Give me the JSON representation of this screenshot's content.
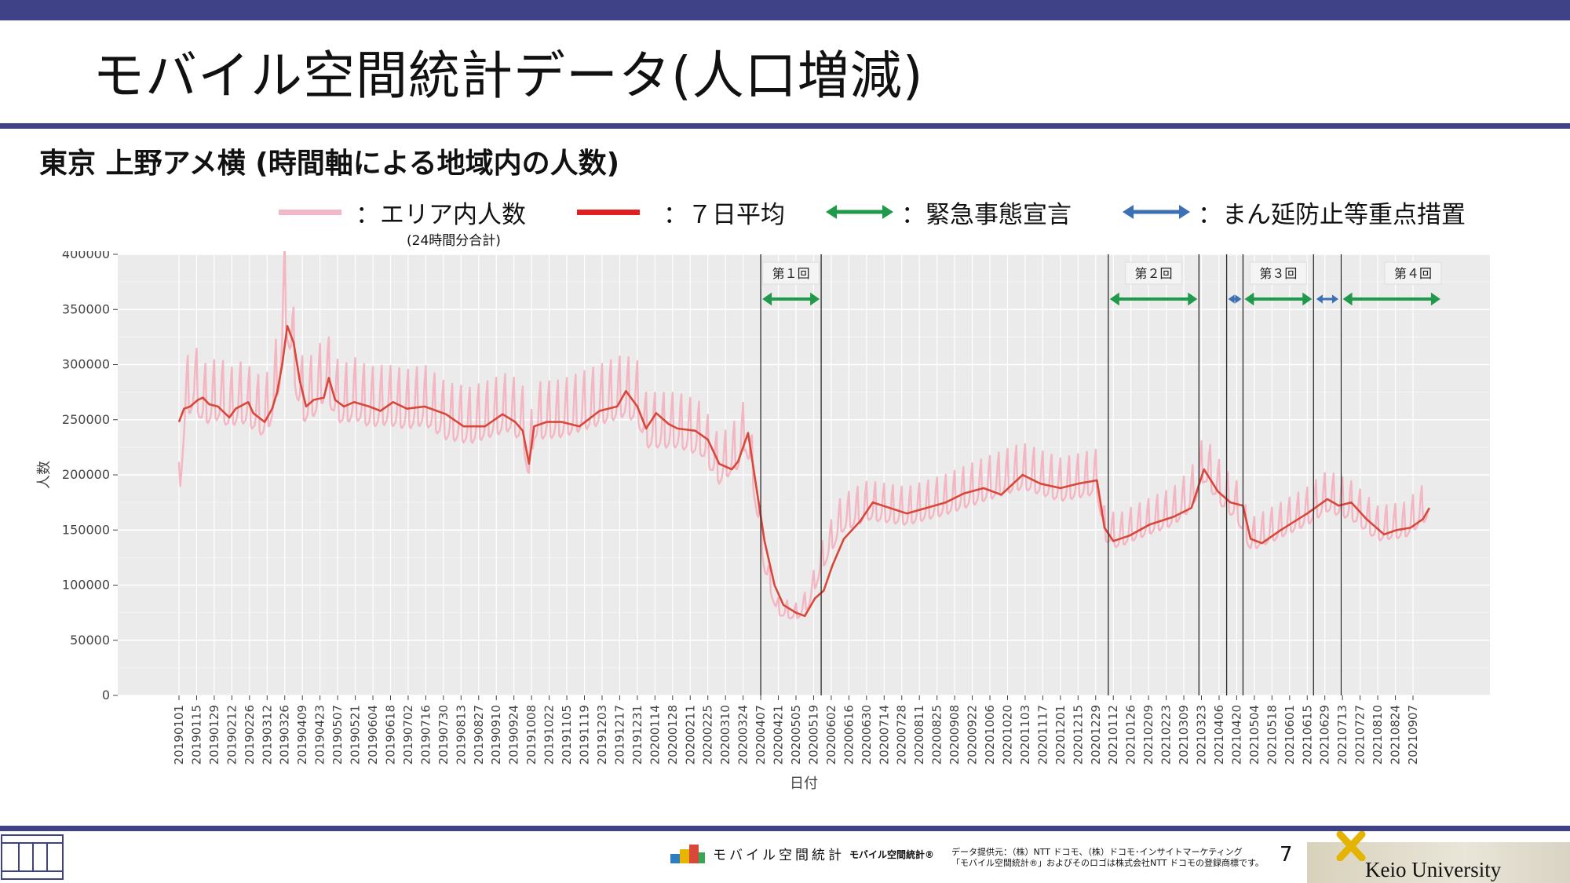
{
  "slide": {
    "title": "モバイル空間統計データ(人口増減)",
    "subtitle": "東京 上野アメ横 (時間軸による地域内の人数)",
    "page_number": "7"
  },
  "legend": {
    "area_label": "：エリア内人数",
    "area_note": "(24時間分合計)",
    "avg_label": "：７日平均",
    "emergency_label": "：緊急事態宣言",
    "priority_label": "：まん延防止等重点措置"
  },
  "footer": {
    "brand": "モバイル空間統計",
    "registered": "モバイル空間統計®",
    "credit_line1": "データ提供元：（株）NTT ドコモ、（株）ドコモ･インサイトマーケティング",
    "credit_line2": "「モバイル空間統計®」およびそのロゴは株式会社NTT ドコモの登録商標です。",
    "university": "Keio University"
  },
  "colors": {
    "daily": "#f4b6c2",
    "average": "#d9473b",
    "emergency": "#1f9a4a",
    "priority": "#3b6fb6",
    "band": "#3f4287",
    "panel": "#ebebeb"
  },
  "chart_data": {
    "type": "line",
    "xlabel": "日付",
    "ylabel": "人数",
    "ylim": [
      0,
      400000
    ],
    "yticks": [
      0,
      50000,
      100000,
      150000,
      200000,
      250000,
      300000,
      350000,
      400000
    ],
    "ytick_labels": [
      "0",
      "50000",
      "100000",
      "150000",
      "200000",
      "250000",
      "300000",
      "350000",
      "400000"
    ],
    "x_start": "2019-01-01",
    "x_end": "2021-09-20",
    "x_tick_labels": [
      "20190101",
      "20190115",
      "20190129",
      "20190212",
      "20190226",
      "20190312",
      "20190326",
      "20190409",
      "20190423",
      "20190507",
      "20190521",
      "20190604",
      "20190618",
      "20190702",
      "20190716",
      "20190730",
      "20190813",
      "20190827",
      "20190910",
      "20190924",
      "20191008",
      "20191022",
      "20191105",
      "20191119",
      "20191203",
      "20191217",
      "20191231",
      "20200114",
      "20200128",
      "20200211",
      "20200225",
      "20200310",
      "20200324",
      "20200407",
      "20200421",
      "20200505",
      "20200519",
      "20200602",
      "20200616",
      "20200630",
      "20200714",
      "20200728",
      "20200811",
      "20200825",
      "20200908",
      "20200922",
      "20201006",
      "20201020",
      "20201103",
      "20201117",
      "20201201",
      "20201215",
      "20201229",
      "20210112",
      "20210126",
      "20210209",
      "20210223",
      "20210309",
      "20210323",
      "20210406",
      "20210420",
      "20210504",
      "20210518",
      "20210601",
      "20210615",
      "20210629",
      "20210713",
      "20210727",
      "20210810",
      "20210824",
      "20210907"
    ],
    "grid": true,
    "series": [
      {
        "name": "エリア内人数",
        "style": "daily",
        "points": [
          [
            "20190101",
            185000
          ],
          [
            "20190106",
            265000
          ],
          [
            "20190113",
            280000
          ],
          [
            "20190120",
            262000
          ],
          [
            "20190127",
            265000
          ],
          [
            "20190203",
            268000
          ],
          [
            "20190210",
            258000
          ],
          [
            "20190217",
            265000
          ],
          [
            "20190224",
            262000
          ],
          [
            "20190303",
            256000
          ],
          [
            "20190310",
            250000
          ],
          [
            "20190317",
            270000
          ],
          [
            "20190322",
            300000
          ],
          [
            "20190326",
            360000
          ],
          [
            "20190330",
            330000
          ],
          [
            "20190405",
            285000
          ],
          [
            "20190410",
            265000
          ],
          [
            "20190420",
            272000
          ],
          [
            "20190428",
            290000
          ],
          [
            "20190505",
            268000
          ],
          [
            "20190512",
            262000
          ],
          [
            "20190520",
            268000
          ],
          [
            "20190601",
            260000
          ],
          [
            "20190615",
            262000
          ],
          [
            "20190701",
            258000
          ],
          [
            "20190715",
            262000
          ],
          [
            "20190801",
            248000
          ],
          [
            "20190820",
            244000
          ],
          [
            "20190905",
            250000
          ],
          [
            "20190920",
            256000
          ],
          [
            "20191001",
            245000
          ],
          [
            "20191006",
            205000
          ],
          [
            "20191010",
            248000
          ],
          [
            "20191101",
            250000
          ],
          [
            "20191201",
            262000
          ],
          [
            "20191220",
            270000
          ],
          [
            "20191231",
            265000
          ],
          [
            "20200107",
            240000
          ],
          [
            "20200201",
            240000
          ],
          [
            "20200220",
            232000
          ],
          [
            "20200305",
            205000
          ],
          [
            "20200320",
            220000
          ],
          [
            "20200326",
            238000
          ],
          [
            "20200401",
            200000
          ],
          [
            "20200410",
            120000
          ],
          [
            "20200420",
            78000
          ],
          [
            "20200505",
            73000
          ],
          [
            "20200515",
            85000
          ],
          [
            "20200525",
            120000
          ],
          [
            "20200610",
            158000
          ],
          [
            "20200701",
            170000
          ],
          [
            "20200801",
            165000
          ],
          [
            "20200901",
            175000
          ],
          [
            "20201001",
            188000
          ],
          [
            "20201101",
            200000
          ],
          [
            "20201201",
            188000
          ],
          [
            "20201230",
            195000
          ],
          [
            "20210105",
            150000
          ],
          [
            "20210115",
            143000
          ],
          [
            "20210201",
            152000
          ],
          [
            "20210301",
            165000
          ],
          [
            "20210315",
            180000
          ],
          [
            "20210325",
            207000
          ],
          [
            "20210410",
            180000
          ],
          [
            "20210420",
            170000
          ],
          [
            "20210501",
            140000
          ],
          [
            "20210520",
            150000
          ],
          [
            "20210615",
            165000
          ],
          [
            "20210701",
            178000
          ],
          [
            "20210720",
            170000
          ],
          [
            "20210810",
            150000
          ],
          [
            "20210901",
            153000
          ],
          [
            "20210920",
            172000
          ]
        ]
      },
      {
        "name": "７日平均",
        "style": "average",
        "points": [
          [
            "20190101",
            248000
          ],
          [
            "20190105",
            260000
          ],
          [
            "20190110",
            262000
          ],
          [
            "20190116",
            268000
          ],
          [
            "20190120",
            270000
          ],
          [
            "20190125",
            264000
          ],
          [
            "20190201",
            262000
          ],
          [
            "20190210",
            252000
          ],
          [
            "20190215",
            260000
          ],
          [
            "20190225",
            266000
          ],
          [
            "20190301",
            256000
          ],
          [
            "20190310",
            248000
          ],
          [
            "20190316",
            260000
          ],
          [
            "20190320",
            275000
          ],
          [
            "20190324",
            300000
          ],
          [
            "20190328",
            335000
          ],
          [
            "20190402",
            320000
          ],
          [
            "20190407",
            285000
          ],
          [
            "20190412",
            262000
          ],
          [
            "20190418",
            268000
          ],
          [
            "20190426",
            270000
          ],
          [
            "20190430",
            288000
          ],
          [
            "20190505",
            268000
          ],
          [
            "20190512",
            262000
          ],
          [
            "20190520",
            266000
          ],
          [
            "20190601",
            262000
          ],
          [
            "20190610",
            258000
          ],
          [
            "20190620",
            266000
          ],
          [
            "20190701",
            260000
          ],
          [
            "20190715",
            262000
          ],
          [
            "20190801",
            255000
          ],
          [
            "20190815",
            244000
          ],
          [
            "20190901",
            244000
          ],
          [
            "20190915",
            255000
          ],
          [
            "20190925",
            248000
          ],
          [
            "20191001",
            240000
          ],
          [
            "20191006",
            210000
          ],
          [
            "20191010",
            244000
          ],
          [
            "20191020",
            248000
          ],
          [
            "20191101",
            248000
          ],
          [
            "20191115",
            244000
          ],
          [
            "20191201",
            258000
          ],
          [
            "20191215",
            262000
          ],
          [
            "20191222",
            276000
          ],
          [
            "20191231",
            262000
          ],
          [
            "20200107",
            242000
          ],
          [
            "20200115",
            256000
          ],
          [
            "20200125",
            246000
          ],
          [
            "20200201",
            242000
          ],
          [
            "20200215",
            240000
          ],
          [
            "20200225",
            232000
          ],
          [
            "20200305",
            210000
          ],
          [
            "20200315",
            205000
          ],
          [
            "20200320",
            212000
          ],
          [
            "20200328",
            238000
          ],
          [
            "20200402",
            200000
          ],
          [
            "20200410",
            140000
          ],
          [
            "20200418",
            100000
          ],
          [
            "20200425",
            82000
          ],
          [
            "20200505",
            75000
          ],
          [
            "20200512",
            72000
          ],
          [
            "20200520",
            88000
          ],
          [
            "20200527",
            95000
          ],
          [
            "20200603",
            118000
          ],
          [
            "20200612",
            142000
          ],
          [
            "20200625",
            158000
          ],
          [
            "20200705",
            175000
          ],
          [
            "20200801",
            165000
          ],
          [
            "20200901",
            175000
          ],
          [
            "20200915",
            183000
          ],
          [
            "20201001",
            188000
          ],
          [
            "20201015",
            182000
          ],
          [
            "20201101",
            200000
          ],
          [
            "20201115",
            192000
          ],
          [
            "20201201",
            188000
          ],
          [
            "20201215",
            192000
          ],
          [
            "20201230",
            195000
          ],
          [
            "20210105",
            152000
          ],
          [
            "20210112",
            140000
          ],
          [
            "20210125",
            145000
          ],
          [
            "20210210",
            155000
          ],
          [
            "20210301",
            162000
          ],
          [
            "20210315",
            170000
          ],
          [
            "20210325",
            205000
          ],
          [
            "20210405",
            185000
          ],
          [
            "20210415",
            175000
          ],
          [
            "20210425",
            172000
          ],
          [
            "20210501",
            142000
          ],
          [
            "20210510",
            138000
          ],
          [
            "20210525",
            150000
          ],
          [
            "20210615",
            165000
          ],
          [
            "20210701",
            178000
          ],
          [
            "20210710",
            172000
          ],
          [
            "20210720",
            175000
          ],
          [
            "20210801",
            160000
          ],
          [
            "20210815",
            146000
          ],
          [
            "20210825",
            150000
          ],
          [
            "20210905",
            152000
          ],
          [
            "20210915",
            160000
          ],
          [
            "20210920",
            170000
          ]
        ]
      }
    ],
    "vertical_lines": [
      "20200407",
      "20200525",
      "20210108",
      "20210321",
      "20210412",
      "20210425",
      "20210620",
      "20210712"
    ],
    "periods": [
      {
        "label": "第１回",
        "type": "emergency",
        "start": "20200407",
        "end": "20200525",
        "label_shown": true
      },
      {
        "label": "第２回",
        "type": "emergency",
        "start": "20210108",
        "end": "20210321",
        "label_shown": true
      },
      {
        "label": "",
        "type": "priority",
        "start": "20210412",
        "end": "20210425",
        "label_shown": false
      },
      {
        "label": "第３回",
        "type": "emergency",
        "start": "20210425",
        "end": "20210620",
        "label_shown": true
      },
      {
        "label": "",
        "type": "priority",
        "start": "20210621",
        "end": "20210711",
        "label_shown": false
      },
      {
        "label": "第４回",
        "type": "emergency",
        "start": "20210712",
        "end": "20210930",
        "label_shown": true
      }
    ]
  }
}
